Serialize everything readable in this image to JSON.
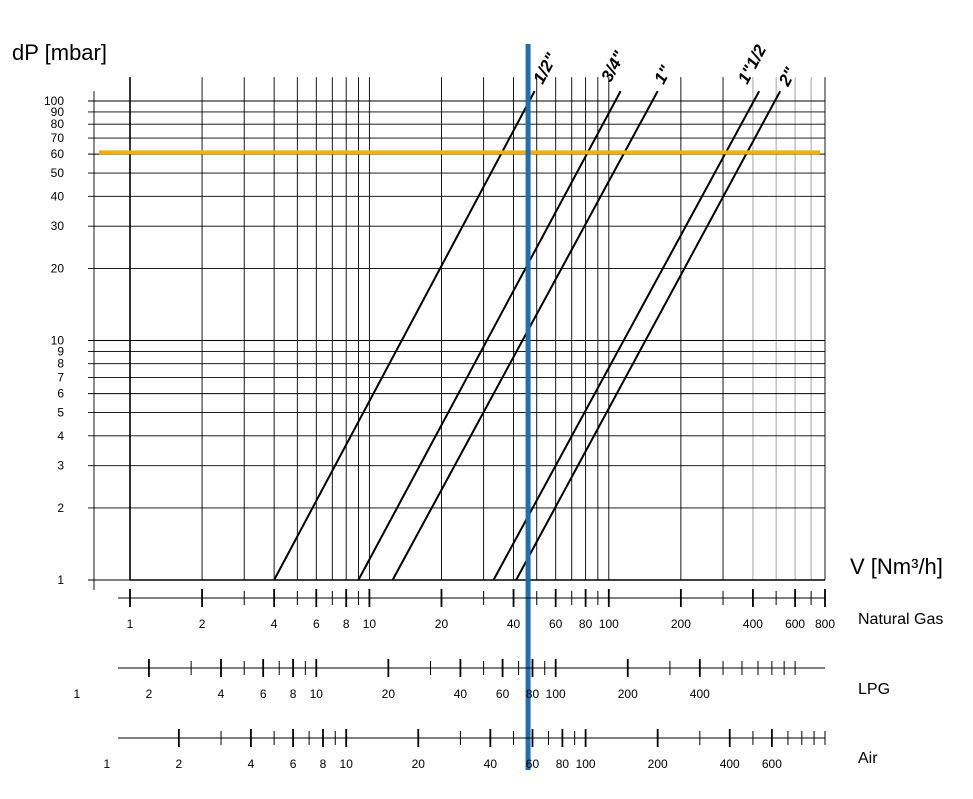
{
  "chart_data": {
    "type": "line",
    "title": "",
    "ylabel": "dP [mbar]",
    "xlabel": "V [Nm³/h]",
    "x_scale": "log",
    "y_scale": "log",
    "xlim": [
      1,
      800
    ],
    "ylim": [
      1,
      110
    ],
    "y_ticks": [
      1,
      2,
      3,
      4,
      5,
      6,
      7,
      8,
      9,
      10,
      20,
      30,
      40,
      50,
      60,
      70,
      80,
      90,
      100
    ],
    "y_tick_labels": [
      "1",
      "2",
      "3",
      "4",
      "5",
      "6",
      "7",
      "8",
      "9",
      "10",
      "20",
      "30",
      "40",
      "50",
      "60",
      "70",
      "80",
      "90",
      "100"
    ],
    "series": [
      {
        "name": "1/2\"",
        "x": [
          4.0,
          49
        ],
        "y": [
          1,
          110
        ]
      },
      {
        "name": "3/4\"",
        "x": [
          9.0,
          112
        ],
        "y": [
          1,
          110
        ]
      },
      {
        "name": "1\"",
        "x": [
          12.5,
          160
        ],
        "y": [
          1,
          110
        ]
      },
      {
        "name": "1\"1/2",
        "x": [
          33,
          425
        ],
        "y": [
          1,
          110
        ]
      },
      {
        "name": "2\"",
        "x": [
          41,
          520
        ],
        "y": [
          1,
          110
        ]
      }
    ],
    "reference_lines": [
      {
        "orientation": "horizontal",
        "value": 61,
        "color": "#f2b203"
      },
      {
        "orientation": "vertical",
        "value": 46,
        "color": "#1f6fb1"
      }
    ],
    "gas_scales": [
      {
        "name": "Natural Gas",
        "factor": 1.0,
        "labels": [
          "1",
          "2",
          "4",
          "6",
          "8",
          "10",
          "20",
          "40",
          "60",
          "80",
          "100",
          "200",
          "400",
          "600",
          "800"
        ]
      },
      {
        "name": "LPG",
        "factor": 0.6,
        "labels": [
          "1",
          "2",
          "4",
          "6",
          "8",
          "10",
          "20",
          "40",
          "60",
          "80",
          "100",
          "200",
          "400"
        ]
      },
      {
        "name": "Air",
        "factor": 0.8,
        "labels": [
          "1",
          "2",
          "4",
          "6",
          "8",
          "10",
          "20",
          "40",
          "60",
          "80",
          "100",
          "200",
          "400",
          "600"
        ]
      }
    ]
  },
  "colors": {
    "horizontal_marker": "#f2b203",
    "vertical_marker": "#1f6fb1"
  }
}
